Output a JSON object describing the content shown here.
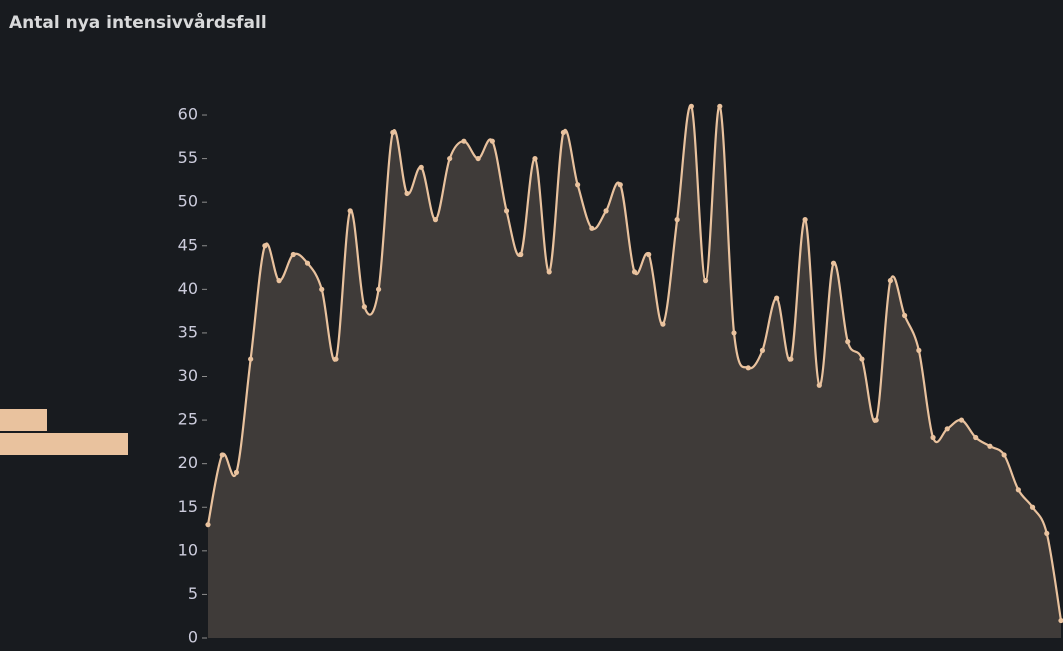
{
  "chart_data": {
    "type": "line",
    "title": "Antal nya intensivvårdsfall",
    "values": [
      13,
      21,
      19,
      32,
      45,
      41,
      44,
      43,
      40,
      32,
      49,
      38,
      40,
      58,
      51,
      54,
      48,
      55,
      57,
      55,
      57,
      49,
      44,
      55,
      42,
      58,
      52,
      47,
      49,
      52,
      42,
      44,
      36,
      48,
      61,
      41,
      61,
      35,
      31,
      33,
      39,
      32,
      48,
      29,
      43,
      34,
      32,
      25,
      41,
      37,
      33,
      23,
      24,
      25,
      23,
      22,
      21,
      17,
      15,
      12,
      2
    ],
    "color": "#e9c29e",
    "fill": "#3f3b39",
    "ylim": [
      0,
      61
    ],
    "yticks": [
      0,
      5,
      10,
      15,
      20,
      25,
      30,
      35,
      40,
      45,
      50,
      55,
      60
    ]
  }
}
